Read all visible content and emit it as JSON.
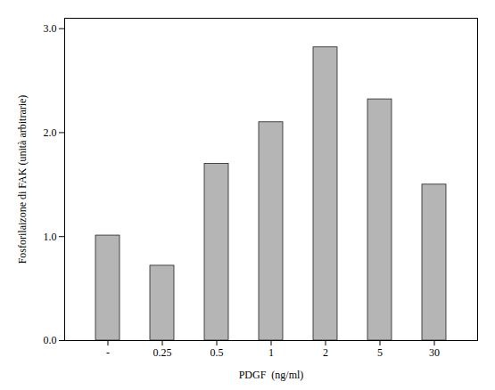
{
  "chart_data": {
    "type": "bar",
    "categories": [
      "-",
      "0.25",
      "0.5",
      "1",
      "2",
      "5",
      "30"
    ],
    "values": [
      1.01,
      0.72,
      1.7,
      2.1,
      2.82,
      2.32,
      1.5
    ],
    "color": "#b5b5b5",
    "xlabel": "PDGF  (ng/ml)",
    "ylabel": "Fosforilaizone di FAK (unità arbitrarie)",
    "ylim": [
      0,
      3.1
    ],
    "yticks": [
      0,
      1,
      2,
      3
    ],
    "grid": false
  }
}
